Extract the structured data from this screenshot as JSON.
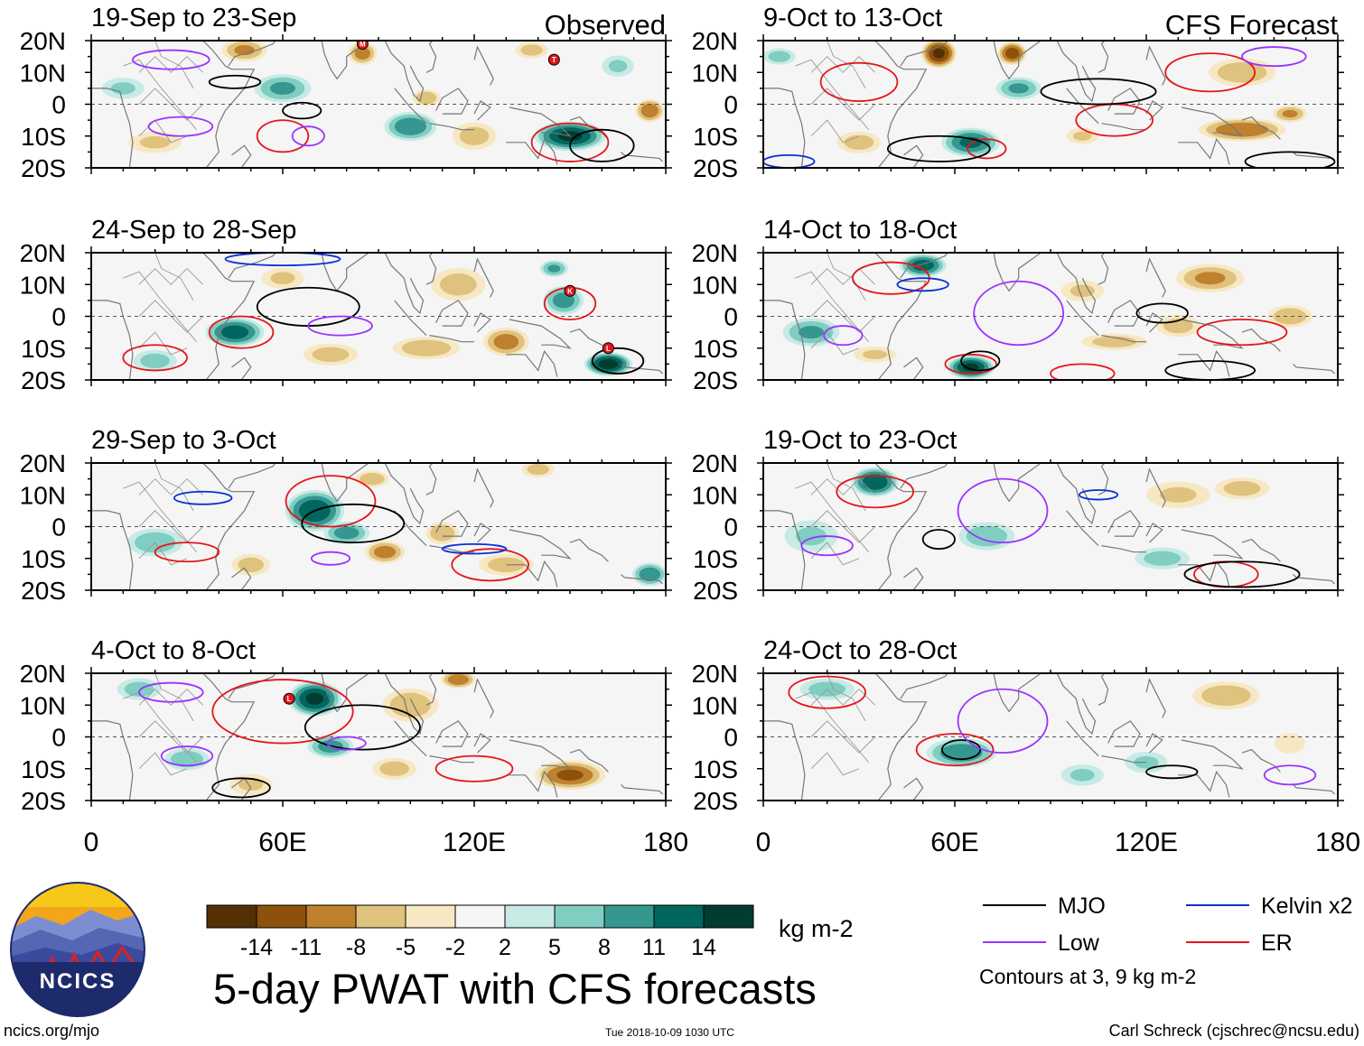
{
  "chart_data": {
    "type": "heatmap",
    "title": "5-day PWAT with CFS forecasts",
    "columns": [
      {
        "label": "Observed",
        "xticks": [
          "0",
          "60E",
          "120E",
          "180"
        ]
      },
      {
        "label": "CFS Forecast",
        "xticks": [
          "0",
          "60E",
          "120E",
          "180"
        ]
      }
    ],
    "yticks": [
      "20N",
      "10N",
      "0",
      "10S",
      "20S"
    ],
    "xlim_deg": [
      0,
      180
    ],
    "ylim_deg": [
      -20,
      20
    ],
    "panels": [
      {
        "title": "19-Sep to 23-Sep",
        "column": 0,
        "row": 0,
        "blobs": [
          [
            150,
            -10,
            12,
            5,
            14
          ],
          [
            100,
            -7,
            9,
            5,
            10
          ],
          [
            60,
            5,
            10,
            5,
            8
          ],
          [
            85,
            16,
            5,
            4,
            -9
          ],
          [
            48,
            17,
            8,
            4,
            -8
          ],
          [
            105,
            2,
            5,
            3,
            -7
          ],
          [
            175,
            -2,
            5,
            4,
            -10
          ],
          [
            120,
            -10,
            8,
            5,
            -6
          ],
          [
            20,
            -12,
            10,
            4,
            -5
          ],
          [
            138,
            17,
            6,
            3,
            -6
          ],
          [
            10,
            5,
            8,
            4,
            5
          ],
          [
            165,
            12,
            6,
            4,
            5
          ]
        ],
        "contours": [
          {
            "kind": "ER",
            "lon": 60,
            "lat": -10,
            "w": 8,
            "h": 5
          },
          {
            "kind": "ER",
            "lon": 150,
            "lat": -12,
            "w": 12,
            "h": 6
          },
          {
            "kind": "MJO",
            "lon": 45,
            "lat": 7,
            "w": 8,
            "h": 2
          },
          {
            "kind": "MJO",
            "lon": 66,
            "lat": -2,
            "w": 6,
            "h": 2.5
          },
          {
            "kind": "MJO",
            "lon": 160,
            "lat": -13,
            "w": 10,
            "h": 5
          },
          {
            "kind": "Low",
            "lon": 28,
            "lat": -7,
            "w": 10,
            "h": 3
          },
          {
            "kind": "Low",
            "lon": 68,
            "lat": -10,
            "w": 5,
            "h": 3
          },
          {
            "kind": "Low",
            "lon": 25,
            "lat": 14,
            "w": 12,
            "h": 3
          }
        ],
        "storms": [
          {
            "label": "T",
            "lon": 145,
            "lat": 14
          },
          {
            "label": "M",
            "lon": 85,
            "lat": 19
          }
        ]
      },
      {
        "title": "24-Sep to 28-Sep",
        "column": 0,
        "row": 1,
        "blobs": [
          [
            45,
            -5,
            10,
            5,
            12
          ],
          [
            162,
            -15,
            8,
            4,
            15
          ],
          [
            148,
            5,
            7,
            5,
            9
          ],
          [
            130,
            -8,
            8,
            5,
            -9
          ],
          [
            105,
            -10,
            12,
            4,
            -7
          ],
          [
            75,
            -12,
            10,
            4,
            -6
          ],
          [
            115,
            10,
            10,
            6,
            -6
          ],
          [
            60,
            12,
            8,
            4,
            -5
          ],
          [
            145,
            15,
            5,
            3,
            8
          ],
          [
            20,
            -14,
            8,
            4,
            6
          ]
        ],
        "contours": [
          {
            "kind": "ER",
            "lon": 47,
            "lat": -5,
            "w": 10,
            "h": 5
          },
          {
            "kind": "ER",
            "lon": 20,
            "lat": -13,
            "w": 10,
            "h": 4
          },
          {
            "kind": "ER",
            "lon": 150,
            "lat": 4,
            "w": 8,
            "h": 5
          },
          {
            "kind": "ER",
            "lon": 165,
            "lat": -14,
            "w": 8,
            "h": 4
          },
          {
            "kind": "MJO",
            "lon": 68,
            "lat": 3,
            "w": 16,
            "h": 6
          },
          {
            "kind": "MJO",
            "lon": 165,
            "lat": -14,
            "w": 8,
            "h": 4
          },
          {
            "kind": "Low",
            "lon": 78,
            "lat": -3,
            "w": 10,
            "h": 3
          },
          {
            "kind": "Kelvin",
            "lon": 60,
            "lat": 18,
            "w": 18,
            "h": 2
          }
        ],
        "storms": [
          {
            "label": "K",
            "lon": 150,
            "lat": 8
          },
          {
            "label": "L",
            "lon": 162,
            "lat": -10
          }
        ]
      },
      {
        "title": "29-Sep to 3-Oct",
        "column": 0,
        "row": 2,
        "blobs": [
          [
            70,
            5,
            10,
            7,
            13
          ],
          [
            80,
            -2,
            8,
            4,
            9
          ],
          [
            20,
            -5,
            10,
            5,
            7
          ],
          [
            175,
            -15,
            6,
            4,
            10
          ],
          [
            92,
            -8,
            7,
            4,
            -9
          ],
          [
            110,
            -2,
            6,
            4,
            -7
          ],
          [
            130,
            -12,
            10,
            4,
            -6
          ],
          [
            50,
            -12,
            7,
            4,
            -6
          ],
          [
            140,
            18,
            6,
            3,
            -6
          ],
          [
            88,
            15,
            6,
            3,
            -7
          ]
        ],
        "contours": [
          {
            "kind": "ER",
            "lon": 75,
            "lat": 8,
            "w": 14,
            "h": 8
          },
          {
            "kind": "ER",
            "lon": 30,
            "lat": -8,
            "w": 10,
            "h": 3
          },
          {
            "kind": "ER",
            "lon": 125,
            "lat": -12,
            "w": 12,
            "h": 5
          },
          {
            "kind": "MJO",
            "lon": 82,
            "lat": 1,
            "w": 16,
            "h": 6
          },
          {
            "kind": "Kelvin",
            "lon": 35,
            "lat": 9,
            "w": 9,
            "h": 2
          },
          {
            "kind": "Kelvin",
            "lon": 120,
            "lat": -7,
            "w": 10,
            "h": 1.5
          },
          {
            "kind": "Low",
            "lon": 75,
            "lat": -10,
            "w": 6,
            "h": 2
          }
        ],
        "storms": []
      },
      {
        "title": "4-Oct to 8-Oct",
        "column": 0,
        "row": 3,
        "blobs": [
          [
            70,
            12,
            9,
            6,
            14
          ],
          [
            75,
            -3,
            8,
            4,
            9
          ],
          [
            30,
            -7,
            8,
            4,
            7
          ],
          [
            100,
            10,
            10,
            6,
            -7
          ],
          [
            115,
            18,
            6,
            3,
            -10
          ],
          [
            150,
            -12,
            12,
            5,
            -11
          ],
          [
            95,
            -10,
            8,
            4,
            -6
          ],
          [
            50,
            -15,
            8,
            4,
            -5
          ],
          [
            15,
            15,
            8,
            4,
            6
          ]
        ],
        "contours": [
          {
            "kind": "ER",
            "lon": 60,
            "lat": 8,
            "w": 22,
            "h": 10
          },
          {
            "kind": "ER",
            "lon": 120,
            "lat": -10,
            "w": 12,
            "h": 4
          },
          {
            "kind": "MJO",
            "lon": 85,
            "lat": 3,
            "w": 18,
            "h": 7
          },
          {
            "kind": "MJO",
            "lon": 47,
            "lat": -16,
            "w": 9,
            "h": 3
          },
          {
            "kind": "Low",
            "lon": 80,
            "lat": -2,
            "w": 6,
            "h": 2
          },
          {
            "kind": "Low",
            "lon": 25,
            "lat": 14,
            "w": 10,
            "h": 3
          },
          {
            "kind": "Low",
            "lon": 30,
            "lat": -6,
            "w": 8,
            "h": 3
          }
        ],
        "storms": [
          {
            "label": "L",
            "lon": 62,
            "lat": 12
          }
        ]
      },
      {
        "title": "9-Oct to 13-Oct",
        "column": 1,
        "row": 0,
        "blobs": [
          [
            55,
            16,
            6,
            5,
            -14
          ],
          [
            78,
            16,
            5,
            4,
            -12
          ],
          [
            65,
            -12,
            10,
            5,
            11
          ],
          [
            80,
            5,
            8,
            4,
            8
          ],
          [
            150,
            -8,
            15,
            4,
            -10
          ],
          [
            150,
            10,
            12,
            5,
            -7
          ],
          [
            165,
            -3,
            6,
            3,
            -8
          ],
          [
            30,
            -12,
            8,
            4,
            -6
          ],
          [
            5,
            15,
            6,
            3,
            6
          ],
          [
            100,
            -10,
            6,
            3,
            -5
          ]
        ],
        "contours": [
          {
            "kind": "ER",
            "lon": 30,
            "lat": 7,
            "w": 12,
            "h": 6
          },
          {
            "kind": "ER",
            "lon": 110,
            "lat": -5,
            "w": 12,
            "h": 5
          },
          {
            "kind": "ER",
            "lon": 140,
            "lat": 10,
            "w": 14,
            "h": 6
          },
          {
            "kind": "ER",
            "lon": 70,
            "lat": -14,
            "w": 6,
            "h": 3
          },
          {
            "kind": "MJO",
            "lon": 105,
            "lat": 4,
            "w": 18,
            "h": 4
          },
          {
            "kind": "MJO",
            "lon": 55,
            "lat": -14,
            "w": 16,
            "h": 4
          },
          {
            "kind": "MJO",
            "lon": 165,
            "lat": -18,
            "w": 14,
            "h": 3
          },
          {
            "kind": "Low",
            "lon": 160,
            "lat": 15,
            "w": 10,
            "h": 3
          },
          {
            "kind": "Kelvin",
            "lon": 8,
            "lat": -18,
            "w": 8,
            "h": 2
          }
        ],
        "storms": []
      },
      {
        "title": "14-Oct to 18-Oct",
        "column": 1,
        "row": 1,
        "blobs": [
          [
            50,
            16,
            8,
            4,
            12
          ],
          [
            65,
            -16,
            8,
            4,
            14
          ],
          [
            140,
            12,
            12,
            5,
            -8
          ],
          [
            130,
            -3,
            8,
            4,
            -6
          ],
          [
            110,
            -8,
            12,
            3,
            -6
          ],
          [
            100,
            8,
            8,
            4,
            -5
          ],
          [
            15,
            -5,
            10,
            5,
            8
          ],
          [
            165,
            0,
            8,
            4,
            -7
          ],
          [
            35,
            -12,
            8,
            3,
            -5
          ]
        ],
        "contours": [
          {
            "kind": "ER",
            "lon": 40,
            "lat": 12,
            "w": 12,
            "h": 5
          },
          {
            "kind": "ER",
            "lon": 65,
            "lat": -15,
            "w": 8,
            "h": 3
          },
          {
            "kind": "ER",
            "lon": 150,
            "lat": -5,
            "w": 14,
            "h": 4
          },
          {
            "kind": "ER",
            "lon": 100,
            "lat": -18,
            "w": 10,
            "h": 3
          },
          {
            "kind": "MJO",
            "lon": 125,
            "lat": 1,
            "w": 8,
            "h": 3
          },
          {
            "kind": "MJO",
            "lon": 68,
            "lat": -14,
            "w": 6,
            "h": 3
          },
          {
            "kind": "MJO",
            "lon": 140,
            "lat": -17,
            "w": 14,
            "h": 3
          },
          {
            "kind": "Low",
            "lon": 80,
            "lat": 1,
            "w": 14,
            "h": 10
          },
          {
            "kind": "Low",
            "lon": 25,
            "lat": -6,
            "w": 6,
            "h": 3
          },
          {
            "kind": "Kelvin",
            "lon": 50,
            "lat": 10,
            "w": 8,
            "h": 2
          }
        ],
        "storms": []
      },
      {
        "title": "19-Oct to 23-Oct",
        "column": 1,
        "row": 2,
        "blobs": [
          [
            35,
            14,
            8,
            5,
            13
          ],
          [
            70,
            -3,
            10,
            5,
            7
          ],
          [
            130,
            10,
            12,
            5,
            -5
          ],
          [
            150,
            12,
            10,
            4,
            -6
          ],
          [
            125,
            -10,
            10,
            4,
            6
          ],
          [
            15,
            -3,
            10,
            6,
            5
          ]
        ],
        "contours": [
          {
            "kind": "ER",
            "lon": 35,
            "lat": 11,
            "w": 12,
            "h": 5
          },
          {
            "kind": "ER",
            "lon": 145,
            "lat": -15,
            "w": 10,
            "h": 4
          },
          {
            "kind": "MJO",
            "lon": 55,
            "lat": -4,
            "w": 5,
            "h": 3
          },
          {
            "kind": "MJO",
            "lon": 150,
            "lat": -15,
            "w": 18,
            "h": 4
          },
          {
            "kind": "Low",
            "lon": 75,
            "lat": 5,
            "w": 14,
            "h": 10
          },
          {
            "kind": "Low",
            "lon": 20,
            "lat": -6,
            "w": 8,
            "h": 3
          },
          {
            "kind": "Kelvin",
            "lon": 105,
            "lat": 10,
            "w": 6,
            "h": 1.5
          }
        ],
        "storms": []
      },
      {
        "title": "24-Oct to 28-Oct",
        "column": 1,
        "row": 3,
        "blobs": [
          [
            62,
            -5,
            12,
            5,
            10
          ],
          [
            20,
            15,
            10,
            4,
            6
          ],
          [
            145,
            13,
            12,
            5,
            -7
          ],
          [
            100,
            -12,
            8,
            4,
            5
          ],
          [
            120,
            -8,
            8,
            4,
            5
          ],
          [
            165,
            -2,
            6,
            4,
            -4
          ]
        ],
        "contours": [
          {
            "kind": "ER",
            "lon": 20,
            "lat": 14,
            "w": 12,
            "h": 5
          },
          {
            "kind": "ER",
            "lon": 60,
            "lat": -4,
            "w": 12,
            "h": 5
          },
          {
            "kind": "MJO",
            "lon": 62,
            "lat": -4,
            "w": 6,
            "h": 3
          },
          {
            "kind": "MJO",
            "lon": 128,
            "lat": -11,
            "w": 8,
            "h": 2
          },
          {
            "kind": "Low",
            "lon": 75,
            "lat": 5,
            "w": 14,
            "h": 10
          },
          {
            "kind": "Low",
            "lon": 165,
            "lat": -12,
            "w": 8,
            "h": 3
          }
        ],
        "storms": []
      }
    ],
    "colorbar": {
      "colors": [
        "#543005",
        "#8c510a",
        "#bf812d",
        "#dfc27d",
        "#f6e8c3",
        "#f5f5f5",
        "#c7eae5",
        "#80cdc1",
        "#35978f",
        "#01665e",
        "#003c30"
      ],
      "tick_labels": [
        "-14",
        "-11",
        "-8",
        "-5",
        "-2",
        "2",
        "5",
        "8",
        "11",
        "14"
      ],
      "units": "kg m-2"
    },
    "legend": {
      "entries": [
        {
          "name": "MJO",
          "color": "#000000"
        },
        {
          "name": "Kelvin x2",
          "color": "#0a2fd6"
        },
        {
          "name": "Low",
          "color": "#9933ff"
        },
        {
          "name": "ER",
          "color": "#e3161b"
        }
      ],
      "note": "Contours at 3, 9 kg m-2"
    },
    "logo_text": "NCICS",
    "footer": {
      "url": "ncics.org/mjo",
      "timestamp": "Tue 2018-10-09 1030 UTC",
      "credit": "Carl Schreck (cjschrec@ncsu.edu)"
    }
  }
}
